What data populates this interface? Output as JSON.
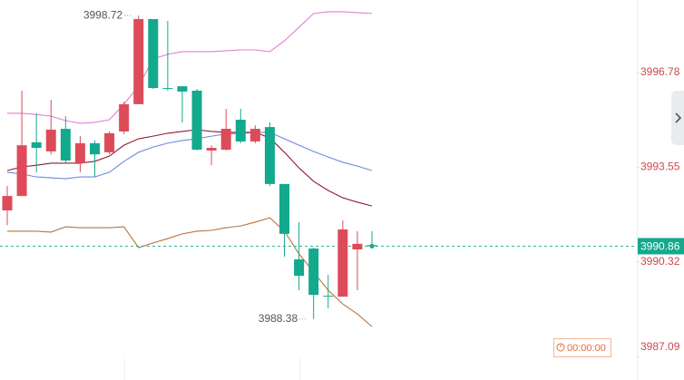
{
  "chart_data": {
    "type": "candlestick",
    "up_color": "#dd4b5a",
    "down_color": "#13a98d",
    "ylim": [
      3986.3,
      3999.25
    ],
    "yticks": [
      3987.09,
      3990.32,
      3993.55,
      3996.78
    ],
    "grid": false,
    "candles": [
      {
        "open": 3992.08,
        "high": 3992.91,
        "low": 3991.58,
        "close": 3992.57
      },
      {
        "open": 3992.57,
        "high": 3996.16,
        "low": 3992.57,
        "close": 3994.3
      },
      {
        "open": 3994.4,
        "high": 3995.39,
        "low": 3993.38,
        "close": 3994.21
      },
      {
        "open": 3994.09,
        "high": 3995.85,
        "low": 3993.99,
        "close": 3994.83
      },
      {
        "open": 3994.86,
        "high": 3995.29,
        "low": 3993.69,
        "close": 3993.78
      },
      {
        "open": 3993.69,
        "high": 3994.61,
        "low": 3993.38,
        "close": 3994.37
      },
      {
        "open": 3994.37,
        "high": 3994.46,
        "low": 3993.22,
        "close": 3993.99
      },
      {
        "open": 3994.06,
        "high": 3994.77,
        "low": 3993.99,
        "close": 3994.71
      },
      {
        "open": 3994.77,
        "high": 3995.79,
        "low": 3994.68,
        "close": 3995.7
      },
      {
        "open": 3995.7,
        "high": 3998.72,
        "low": 3995.7,
        "close": 3998.6
      },
      {
        "open": 3998.6,
        "high": 3998.6,
        "low": 3996.22,
        "close": 3996.25
      },
      {
        "open": 3996.25,
        "high": 3998.54,
        "low": 3996.16,
        "close": 3996.22
      },
      {
        "open": 3996.31,
        "high": 3996.31,
        "low": 3995.08,
        "close": 3996.13
      },
      {
        "open": 3996.16,
        "high": 3996.22,
        "low": 3994.12,
        "close": 3994.15
      },
      {
        "open": 3994.12,
        "high": 3994.3,
        "low": 3993.62,
        "close": 3994.21
      },
      {
        "open": 3994.15,
        "high": 3995.54,
        "low": 3994.12,
        "close": 3994.86
      },
      {
        "open": 3995.17,
        "high": 3995.54,
        "low": 3994.37,
        "close": 3994.43
      },
      {
        "open": 3994.43,
        "high": 3994.98,
        "low": 3994.37,
        "close": 3994.86
      },
      {
        "open": 3994.92,
        "high": 3995.08,
        "low": 3992.91,
        "close": 3992.98
      },
      {
        "open": 3992.98,
        "high": 3992.98,
        "low": 3990.5,
        "close": 3991.28
      },
      {
        "open": 3990.41,
        "high": 3991.68,
        "low": 3989.36,
        "close": 3989.85
      },
      {
        "open": 3990.78,
        "high": 3990.81,
        "low": 3988.38,
        "close": 3989.2
      },
      {
        "open": 3989.17,
        "high": 3989.88,
        "low": 3988.74,
        "close": 3989.14
      },
      {
        "open": 3989.14,
        "high": 3991.74,
        "low": 3989.14,
        "close": 3991.43
      },
      {
        "open": 3990.75,
        "high": 3991.37,
        "low": 3989.36,
        "close": 3990.94
      },
      {
        "open": 3990.9,
        "high": 3991.37,
        "low": 3990.81,
        "close": 3990.86
      }
    ],
    "series": [
      {
        "color": "#e07fd0",
        "values": [
          3995.39,
          3995.39,
          3995.35,
          3995.29,
          3995.14,
          3995.05,
          3995.08,
          3995.17,
          3995.7,
          3996.31,
          3997.24,
          3997.4,
          3997.49,
          3997.49,
          3997.49,
          3997.52,
          3997.55,
          3997.55,
          3997.49,
          3997.86,
          3998.32,
          3998.79,
          3998.85,
          3998.85,
          3998.82,
          3998.79
        ]
      },
      {
        "color": "#6f88e0",
        "values": [
          3993.38,
          3993.32,
          3993.22,
          3993.19,
          3993.16,
          3993.22,
          3993.22,
          3993.38,
          3993.75,
          3994.06,
          3994.24,
          3994.37,
          3994.46,
          3994.52,
          3994.61,
          3994.68,
          3994.71,
          3994.74,
          3994.74,
          3994.52,
          3994.3,
          3994.09,
          3993.9,
          3993.72,
          3993.59,
          3993.44
        ]
      },
      {
        "color": "#8e1c32",
        "values": [
          3993.44,
          3993.56,
          3993.62,
          3993.69,
          3993.69,
          3993.69,
          3993.75,
          3993.93,
          3994.3,
          3994.52,
          3994.61,
          3994.71,
          3994.77,
          3994.83,
          3994.77,
          3994.74,
          3994.74,
          3994.74,
          3994.55,
          3994.06,
          3993.53,
          3993.07,
          3992.76,
          3992.51,
          3992.36,
          3992.23
        ]
      },
      {
        "color": "#b8733e",
        "values": [
          3991.37,
          3991.37,
          3991.37,
          3991.34,
          3991.52,
          3991.49,
          3991.49,
          3991.49,
          3991.52,
          3990.81,
          3990.97,
          3991.12,
          3991.28,
          3991.37,
          3991.4,
          3991.49,
          3991.55,
          3991.68,
          3991.83,
          3991.37,
          3990.6,
          3989.98,
          3989.36,
          3988.89,
          3988.55,
          3988.12
        ]
      }
    ],
    "price_color": "#13a98d",
    "countdown": "00:00:00"
  }
}
